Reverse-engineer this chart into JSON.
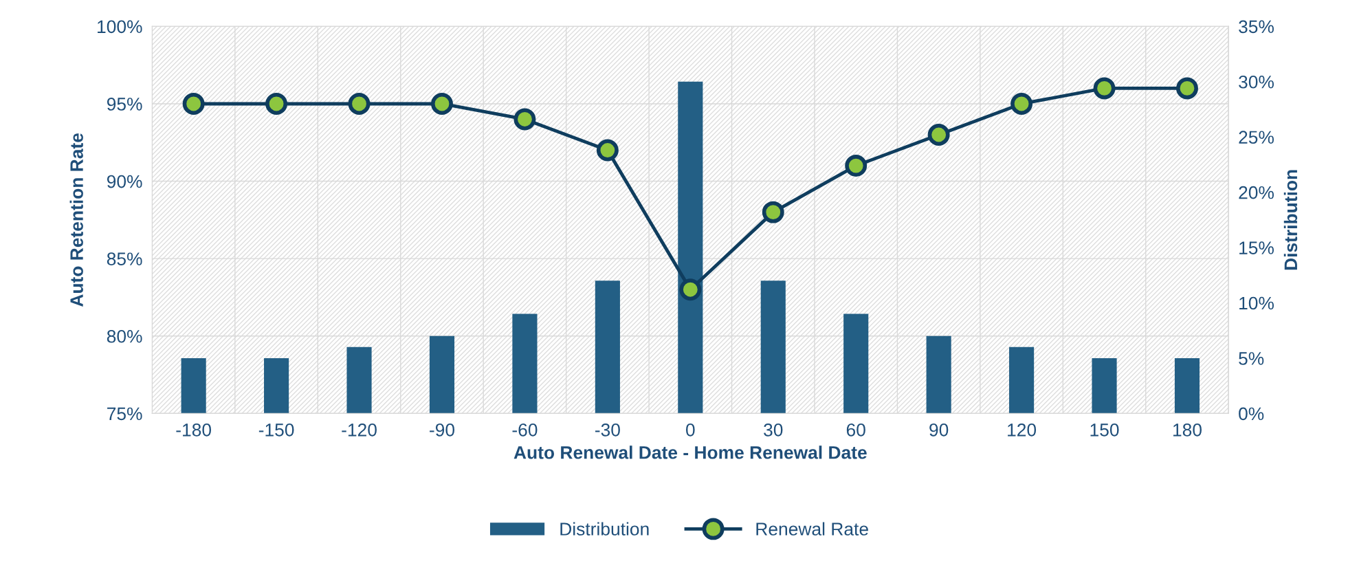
{
  "chart_data": {
    "type": "bar",
    "xlabel": "Auto Renewal Date - Home Renewal Date",
    "ylabel": "Auto Retention Rate",
    "y2label": "Distribution",
    "categories": [
      "-180",
      "-150",
      "-120",
      "-90",
      "-60",
      "-30",
      "0",
      "30",
      "60",
      "90",
      "120",
      "150",
      "180"
    ],
    "series": [
      {
        "name": "Distribution",
        "axis": "y2",
        "color": "#235f85",
        "values": [
          5,
          5,
          6,
          7,
          9,
          12,
          30,
          12,
          9,
          7,
          6,
          5,
          5
        ]
      },
      {
        "name": "Renewal Rate",
        "type": "line",
        "color": "#0f3d5e",
        "marker": "circle",
        "values": [
          95,
          95,
          95,
          95,
          94,
          92,
          83,
          88,
          91,
          93,
          95,
          96,
          96
        ]
      }
    ],
    "ylim": [
      75,
      100
    ],
    "yticks": [
      {
        "value": 75,
        "label": "75%"
      },
      {
        "value": 80,
        "label": "80%"
      },
      {
        "value": 85,
        "label": "85%"
      },
      {
        "value": 90,
        "label": "90%"
      },
      {
        "value": 95,
        "label": "95%"
      },
      {
        "value": 100,
        "label": "100%"
      }
    ],
    "y2lim": [
      0,
      35
    ],
    "y2ticks": [
      {
        "value": 0,
        "label": "0%"
      },
      {
        "value": 5,
        "label": "5%"
      },
      {
        "value": 10,
        "label": "10%"
      },
      {
        "value": 15,
        "label": "15%"
      },
      {
        "value": 20,
        "label": "20%"
      },
      {
        "value": 25,
        "label": "25%"
      },
      {
        "value": 30,
        "label": "30%"
      },
      {
        "value": 35,
        "label": "35%"
      }
    ],
    "grid": true,
    "legend": "bottom"
  }
}
